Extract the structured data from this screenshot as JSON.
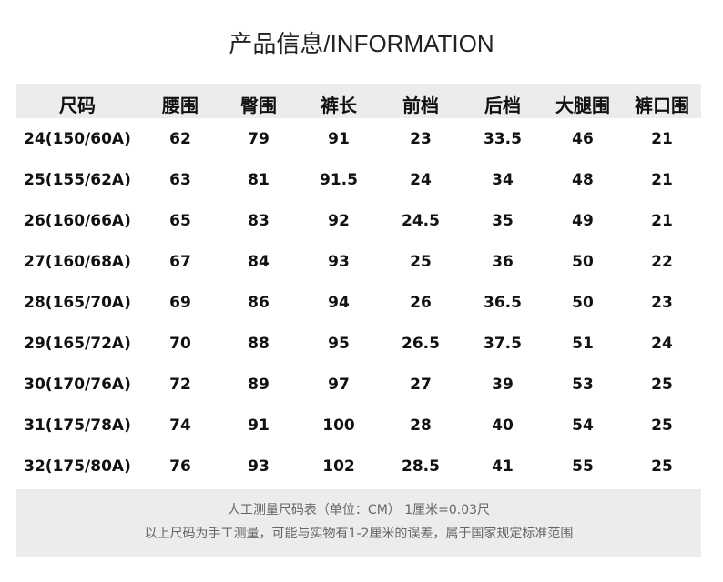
{
  "title": "产品信息/INFORMATION",
  "table": {
    "headers": [
      "尺码",
      "腰围",
      "臀围",
      "裤长",
      "前档",
      "后档",
      "大腿围",
      "裤口围"
    ],
    "rows": [
      [
        "24(150/60A)",
        "62",
        "79",
        "91",
        "23",
        "33.5",
        "46",
        "21"
      ],
      [
        "25(155/62A)",
        "63",
        "81",
        "91.5",
        "24",
        "34",
        "48",
        "21"
      ],
      [
        "26(160/66A)",
        "65",
        "83",
        "92",
        "24.5",
        "35",
        "49",
        "21"
      ],
      [
        "27(160/68A)",
        "67",
        "84",
        "93",
        "25",
        "36",
        "50",
        "22"
      ],
      [
        "28(165/70A)",
        "69",
        "86",
        "94",
        "26",
        "36.5",
        "50",
        "23"
      ],
      [
        "29(165/72A)",
        "70",
        "88",
        "95",
        "26.5",
        "37.5",
        "51",
        "24"
      ],
      [
        "30(170/76A)",
        "72",
        "89",
        "97",
        "27",
        "39",
        "53",
        "25"
      ],
      [
        "31(175/78A)",
        "74",
        "91",
        "100",
        "28",
        "40",
        "54",
        "25"
      ],
      [
        "32(175/80A)",
        "76",
        "93",
        "102",
        "28.5",
        "41",
        "55",
        "25"
      ]
    ]
  },
  "footer": {
    "line1": "人工测量尺码表（单位：CM） 1厘米=0.03尺",
    "line2": "以上尺码为手工测量，可能与实物有1-2厘米的误差，属于国家规定标准范围"
  }
}
